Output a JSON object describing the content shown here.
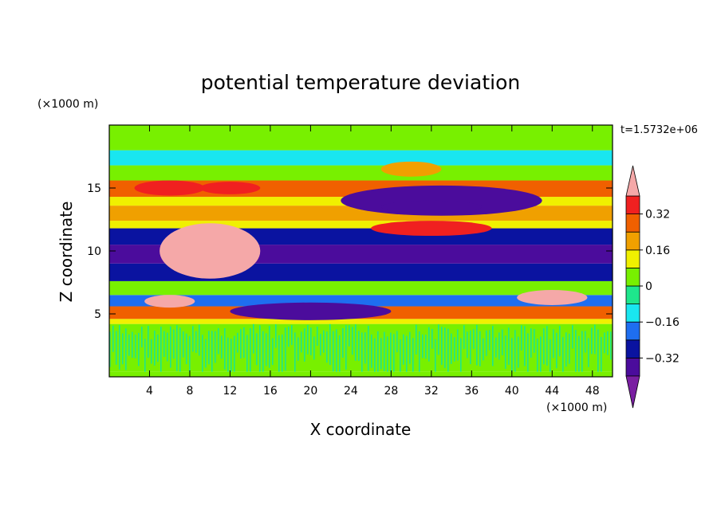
{
  "chart_data": {
    "type": "heatmap",
    "title": "potential temperature deviation",
    "xlabel": "X coordinate",
    "ylabel": "Z coordinate",
    "x_unit": "(×1000 m)",
    "y_unit": "(×1000 m)",
    "time_label": "t=1.5732e+06",
    "xlim": [
      0,
      50
    ],
    "ylim": [
      0,
      20
    ],
    "x_ticks": [
      4,
      8,
      12,
      16,
      20,
      24,
      28,
      32,
      36,
      40,
      44,
      48
    ],
    "y_ticks": [
      5,
      10,
      15
    ],
    "colorbar": {
      "levels": [
        -0.4,
        -0.32,
        -0.24,
        -0.16,
        -0.08,
        0,
        0.08,
        0.16,
        0.24,
        0.32,
        0.4
      ],
      "labeled_ticks": [
        "0.32",
        "0.16",
        "0",
        "−0.16",
        "−0.32"
      ],
      "labeled_values": [
        0.32,
        0.16,
        0,
        -0.16,
        -0.32
      ],
      "colors": [
        "#7a1fa2",
        "#4b0c9c",
        "#0a13a0",
        "#1e6ef0",
        "#19e6f0",
        "#1ee68c",
        "#78f000",
        "#f0f000",
        "#f0a000",
        "#f06000",
        "#f02020",
        "#f5a8a8"
      ],
      "extend": "both"
    },
    "bands": [
      {
        "z": [
          0.0,
          0.4
        ],
        "value": 0.04
      },
      {
        "z": [
          0.4,
          4.2
        ],
        "value": 0.05,
        "texture": "alternating -0.04/0.06"
      },
      {
        "z": [
          4.2,
          4.6
        ],
        "value": 0.1
      },
      {
        "z": [
          4.6,
          5.6
        ],
        "value": 0.3
      },
      {
        "z": [
          5.6,
          6.5
        ],
        "value": -0.2
      },
      {
        "z": [
          6.5,
          7.6
        ],
        "value": 0.0
      },
      {
        "z": [
          7.6,
          9.0
        ],
        "value": -0.28
      },
      {
        "z": [
          9.0,
          10.5
        ],
        "value": -0.38
      },
      {
        "z": [
          10.5,
          11.8
        ],
        "value": -0.3
      },
      {
        "z": [
          11.8,
          12.4
        ],
        "value": 0.12
      },
      {
        "z": [
          12.4,
          13.6
        ],
        "value": 0.2
      },
      {
        "z": [
          13.6,
          14.3
        ],
        "value": 0.1
      },
      {
        "z": [
          14.3,
          15.6
        ],
        "value": 0.26
      },
      {
        "z": [
          15.6,
          16.8
        ],
        "value": 0.04
      },
      {
        "z": [
          16.8,
          18.0
        ],
        "value": -0.12
      },
      {
        "z": [
          18.0,
          20.0
        ],
        "value": 0.06
      }
    ],
    "features": [
      {
        "x": 10,
        "z": 10,
        "rx": 5,
        "rz": 2.2,
        "value": 0.45
      },
      {
        "x": 6,
        "z": 6.0,
        "rx": 2.5,
        "rz": 0.5,
        "value": 0.45
      },
      {
        "x": 44,
        "z": 6.3,
        "rx": 3.5,
        "rz": 0.6,
        "value": 0.45
      },
      {
        "x": 33,
        "z": 14.0,
        "rx": 10,
        "rz": 1.2,
        "value": -0.34
      },
      {
        "x": 32,
        "z": 11.8,
        "rx": 6,
        "rz": 0.6,
        "value": 0.32
      },
      {
        "x": 32,
        "z": 13.5,
        "rx": 5,
        "rz": 0.5,
        "value": -0.36
      },
      {
        "x": 6,
        "z": 15.0,
        "rx": 3.5,
        "rz": 0.6,
        "value": 0.32
      },
      {
        "x": 20,
        "z": 5.2,
        "rx": 8,
        "rz": 0.7,
        "value": -0.4
      },
      {
        "x": 12,
        "z": 15.0,
        "rx": 3,
        "rz": 0.5,
        "value": 0.32
      },
      {
        "x": 30,
        "z": 16.5,
        "rx": 3,
        "rz": 0.6,
        "value": 0.2
      }
    ]
  }
}
